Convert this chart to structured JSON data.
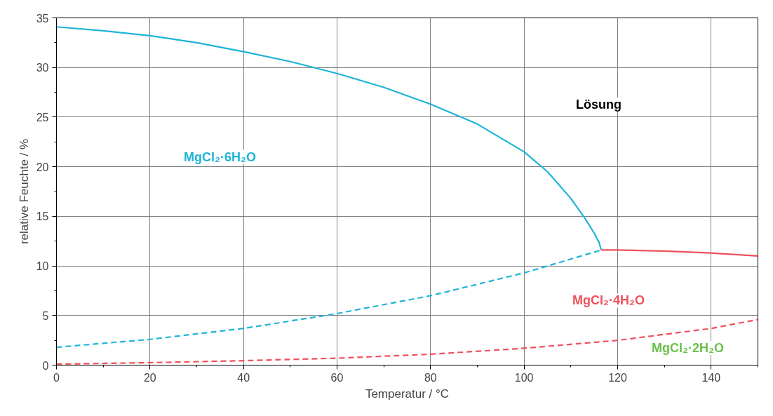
{
  "chart_data": {
    "type": "line",
    "xlabel": "Temperatur / °C",
    "ylabel": "relative Feuchte / %",
    "xlim": [
      0,
      150
    ],
    "ylim": [
      0,
      35
    ],
    "xticks": [
      0,
      20,
      40,
      60,
      80,
      100,
      120,
      140
    ],
    "yticks": [
      0,
      5,
      10,
      15,
      20,
      25,
      30,
      35
    ],
    "grid": true,
    "series": [
      {
        "color": "#1eb4d7",
        "line_style": "solid",
        "x": [
          0,
          10,
          20,
          30,
          40,
          50,
          60,
          70,
          80,
          90,
          100,
          105,
          110,
          113,
          115,
          116,
          116.5
        ],
        "values": [
          34.1,
          33.7,
          33.2,
          32.5,
          31.6,
          30.6,
          29.4,
          28.0,
          26.3,
          24.3,
          21.5,
          19.5,
          16.8,
          14.8,
          13.3,
          12.4,
          11.6
        ]
      },
      {
        "color": "#f0505a",
        "line_style": "solid",
        "x": [
          116.5,
          120,
          130,
          140,
          150
        ],
        "values": [
          11.6,
          11.6,
          11.5,
          11.3,
          11.0
        ]
      },
      {
        "color": "#1eb4d7",
        "line_style": "dashed",
        "x": [
          0,
          20,
          40,
          60,
          80,
          100,
          116.5
        ],
        "values": [
          1.8,
          2.6,
          3.7,
          5.2,
          7.0,
          9.3,
          11.6
        ]
      },
      {
        "color": "#f0505a",
        "line_style": "dashed",
        "x": [
          0,
          20,
          40,
          60,
          80,
          100,
          120,
          140,
          150
        ],
        "values": [
          0.1,
          0.25,
          0.45,
          0.7,
          1.1,
          1.7,
          2.5,
          3.7,
          4.6
        ]
      }
    ],
    "annotations": [
      "Lösung",
      "MgCl₂·6H₂O",
      "MgCl₂·4H₂O",
      "MgCl₂·2H₂O"
    ]
  }
}
